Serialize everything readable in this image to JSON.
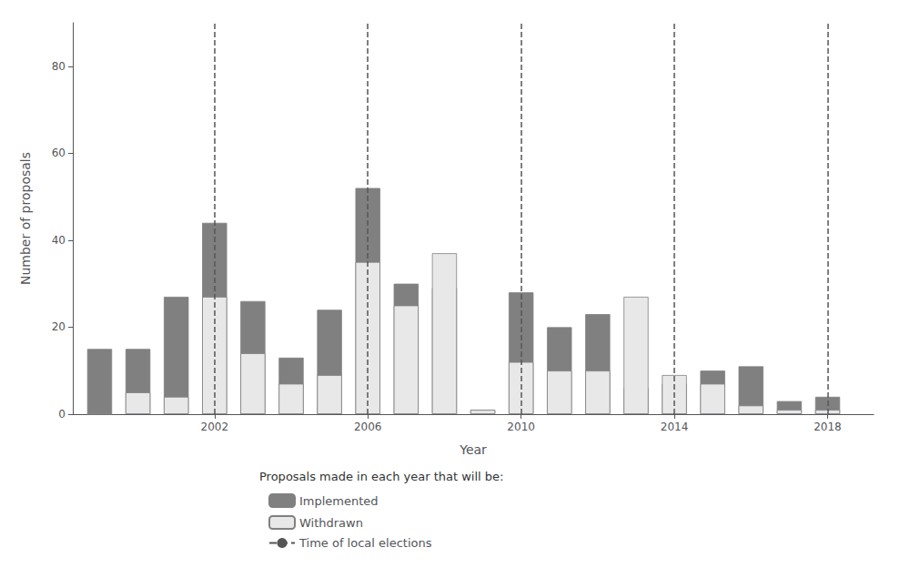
{
  "chart_data": {
    "type": "bar",
    "stacked": true,
    "grid": false,
    "legend": "bottom",
    "xlabel": "Year",
    "ylabel": "Number of proposals",
    "legend_title": "Proposals made in each year that will be:",
    "x": [
      1999,
      2000,
      2001,
      2002,
      2003,
      2004,
      2005,
      2006,
      2007,
      2008,
      2009,
      2010,
      2011,
      2012,
      2013,
      2014,
      2015,
      2016,
      2017,
      2018
    ],
    "series": [
      {
        "name": "Implemented",
        "color": "#808080",
        "values": [
          15,
          15,
          27,
          44,
          26,
          13,
          24,
          52,
          30,
          29,
          1,
          28,
          20,
          23,
          6,
          7,
          10,
          11,
          3,
          4
        ]
      },
      {
        "name": "Withdrawn",
        "color": "#e8e8e8",
        "values": [
          0,
          5,
          4,
          27,
          14,
          7,
          9,
          35,
          25,
          37,
          1,
          12,
          10,
          10,
          27,
          9,
          7,
          2,
          1,
          1
        ]
      },
      {
        "name": "Time of local elections",
        "type": "vline",
        "color": "#555555",
        "line_style": "dashed",
        "x": [
          2002,
          2006,
          2010,
          2014,
          2018
        ]
      }
    ],
    "xlim": [
      1998.3,
      2019.2
    ],
    "xticks": [
      2002,
      2006,
      2010,
      2014,
      2018
    ],
    "ylim": [
      0,
      90
    ],
    "yticks": [
      0,
      20,
      40,
      60,
      80
    ]
  }
}
